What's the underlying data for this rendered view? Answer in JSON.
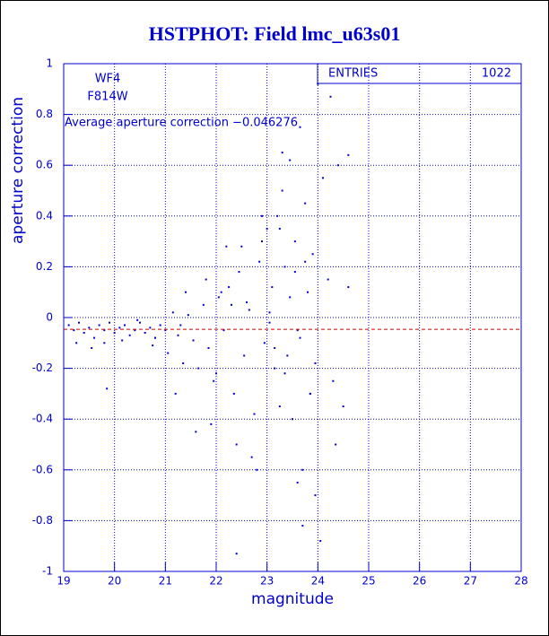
{
  "chart_data": {
    "type": "scatter",
    "title": "HSTPHOT: Field lmc_u63s01",
    "xlabel": "magnitude",
    "ylabel": "aperture correction",
    "annotations": [
      "WF4",
      "F814W"
    ],
    "average_label": "Average aperture correction −0.046276",
    "average": -0.046276,
    "stats": {
      "label": "ENTRIES",
      "value": 1022
    },
    "color": "#0000cc",
    "average_color": "#cc0000",
    "grid": true,
    "xlim": [
      19,
      28
    ],
    "xticks": [
      19,
      20,
      21,
      22,
      23,
      24,
      25,
      26,
      27,
      28
    ],
    "ylim": [
      -1,
      1
    ],
    "yticks": [
      -1,
      -0.8,
      -0.6,
      -0.4,
      -0.2,
      0,
      0.2,
      0.4,
      0.6,
      0.8,
      1
    ],
    "x": [
      19.1,
      19.2,
      19.3,
      19.4,
      19.5,
      19.6,
      19.7,
      19.8,
      19.9,
      20.0,
      20.1,
      20.2,
      20.3,
      20.4,
      20.5,
      20.6,
      20.7,
      20.8,
      20.9,
      21.0,
      19.25,
      19.55,
      19.85,
      20.15,
      20.45,
      20.75,
      21.05,
      21.15,
      21.25,
      21.35,
      21.45,
      21.55,
      21.65,
      21.75,
      21.85,
      21.95,
      22.05,
      22.15,
      22.25,
      22.35,
      22.45,
      22.55,
      22.65,
      22.75,
      22.85,
      22.95,
      21.2,
      21.4,
      21.6,
      21.8,
      22.0,
      22.2,
      22.4,
      22.6,
      22.8,
      23.0,
      23.05,
      23.1,
      23.15,
      23.2,
      23.25,
      23.3,
      23.35,
      23.4,
      23.45,
      23.5,
      23.55,
      23.6,
      23.65,
      23.7,
      23.75,
      23.8,
      23.85,
      23.9,
      23.95,
      24.0,
      24.1,
      24.2,
      24.3,
      24.4,
      24.5,
      24.6,
      23.05,
      23.15,
      23.25,
      23.35,
      23.45,
      23.55,
      23.65,
      23.75,
      23.85,
      23.95,
      22.3,
      22.5,
      22.7,
      22.9,
      21.9,
      22.1,
      19.8,
      20.8,
      24.25,
      24.35,
      24.6,
      23.6,
      24.05,
      22.4,
      23.3,
      23.7,
      22.9,
      21.3
    ],
    "y": [
      -0.03,
      -0.05,
      -0.02,
      -0.06,
      -0.04,
      -0.08,
      -0.03,
      -0.05,
      -0.02,
      -0.06,
      -0.04,
      -0.03,
      -0.07,
      -0.05,
      -0.02,
      -0.06,
      -0.04,
      -0.08,
      -0.03,
      -0.05,
      -0.1,
      -0.12,
      -0.28,
      -0.09,
      -0.01,
      -0.11,
      -0.14,
      0.02,
      -0.07,
      -0.18,
      0.01,
      -0.09,
      -0.2,
      0.05,
      -0.12,
      -0.25,
      0.08,
      -0.05,
      0.12,
      -0.3,
      0.18,
      -0.15,
      0.03,
      -0.38,
      0.22,
      -0.1,
      -0.3,
      0.1,
      -0.45,
      0.15,
      -0.22,
      0.28,
      -0.5,
      0.06,
      -0.6,
      0.35,
      -0.02,
      0.12,
      -0.2,
      0.4,
      -0.35,
      0.5,
      0.2,
      -0.15,
      0.62,
      -0.4,
      0.3,
      -0.05,
      0.75,
      -0.6,
      0.45,
      0.1,
      -0.3,
      0.25,
      -0.7,
      0.92,
      0.55,
      0.15,
      -0.25,
      0.6,
      -0.35,
      0.12,
      0.02,
      -0.12,
      0.35,
      -0.22,
      0.08,
      0.18,
      -0.08,
      0.22,
      -0.3,
      -0.18,
      0.05,
      0.28,
      -0.55,
      0.4,
      -0.42,
      0.1,
      -0.1,
      -0.08,
      0.87,
      -0.5,
      0.64,
      -0.65,
      -0.88,
      -0.93,
      0.65,
      -0.82,
      0.3,
      -0.03
    ]
  }
}
